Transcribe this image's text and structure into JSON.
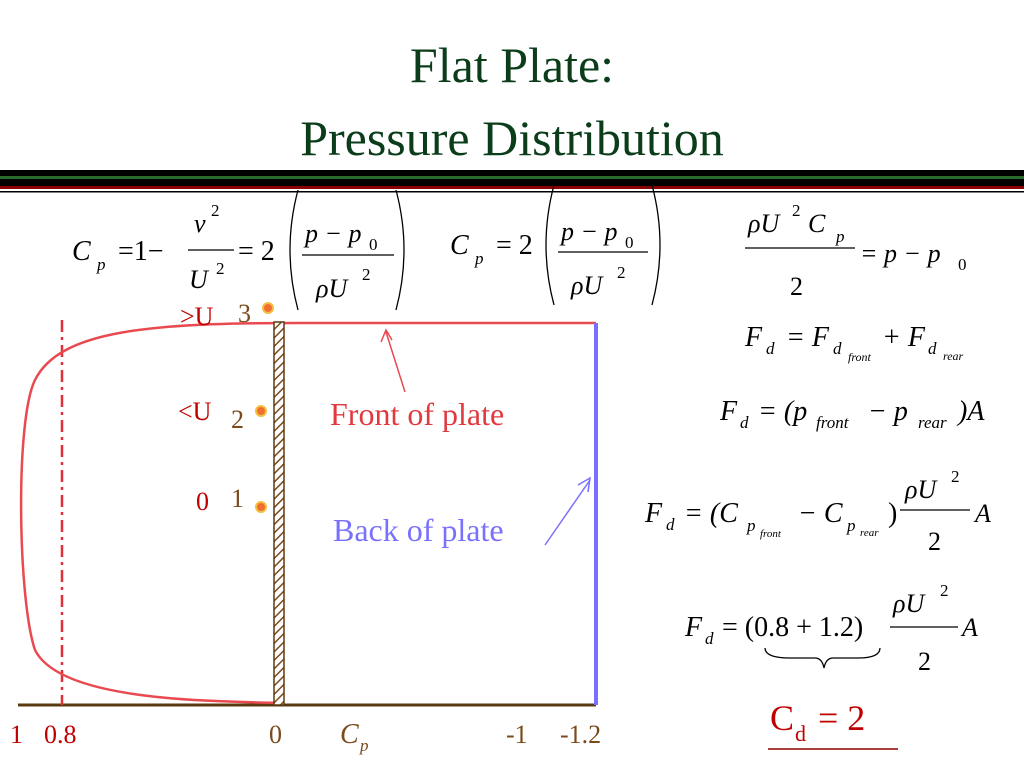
{
  "title": [
    "Flat Plate:",
    "Pressure Distribution"
  ],
  "equations": [
    [
      "C",
      "p",
      "=1−",
      "v",
      "2",
      "U",
      "2",
      "= 2",
      "p − p",
      "0",
      "ρU",
      "2"
    ],
    [
      "C",
      "p",
      "= 2",
      "p − p",
      "0",
      "ρU",
      "2"
    ],
    [
      "ρU",
      "2",
      "C",
      "p",
      "2",
      "= p − p",
      "0"
    ],
    [
      "F",
      "d",
      "= F",
      "d",
      "front",
      "+ F",
      "d",
      "rear"
    ],
    [
      "F",
      "d",
      "= (p",
      "front",
      "− p",
      "rear",
      ")A"
    ],
    [
      "F",
      "d",
      "= (C",
      "p",
      "front",
      "− C",
      "p",
      "rear",
      ")",
      "ρU",
      "2",
      "2",
      "A"
    ],
    [
      "F",
      "d",
      "= (0.8 + 1.2)",
      "ρU",
      "2",
      "2",
      "A"
    ]
  ],
  "diagram": {
    "labels": [
      ">U",
      "3",
      "<U",
      "2",
      "0",
      "1"
    ],
    "front": "Front of plate",
    "back": "Back of plate",
    "axis": [
      "1",
      "0.8",
      "0",
      "C",
      "p",
      "-1",
      "-1.2"
    ]
  },
  "result": [
    "C",
    "d",
    "= 2"
  ]
}
